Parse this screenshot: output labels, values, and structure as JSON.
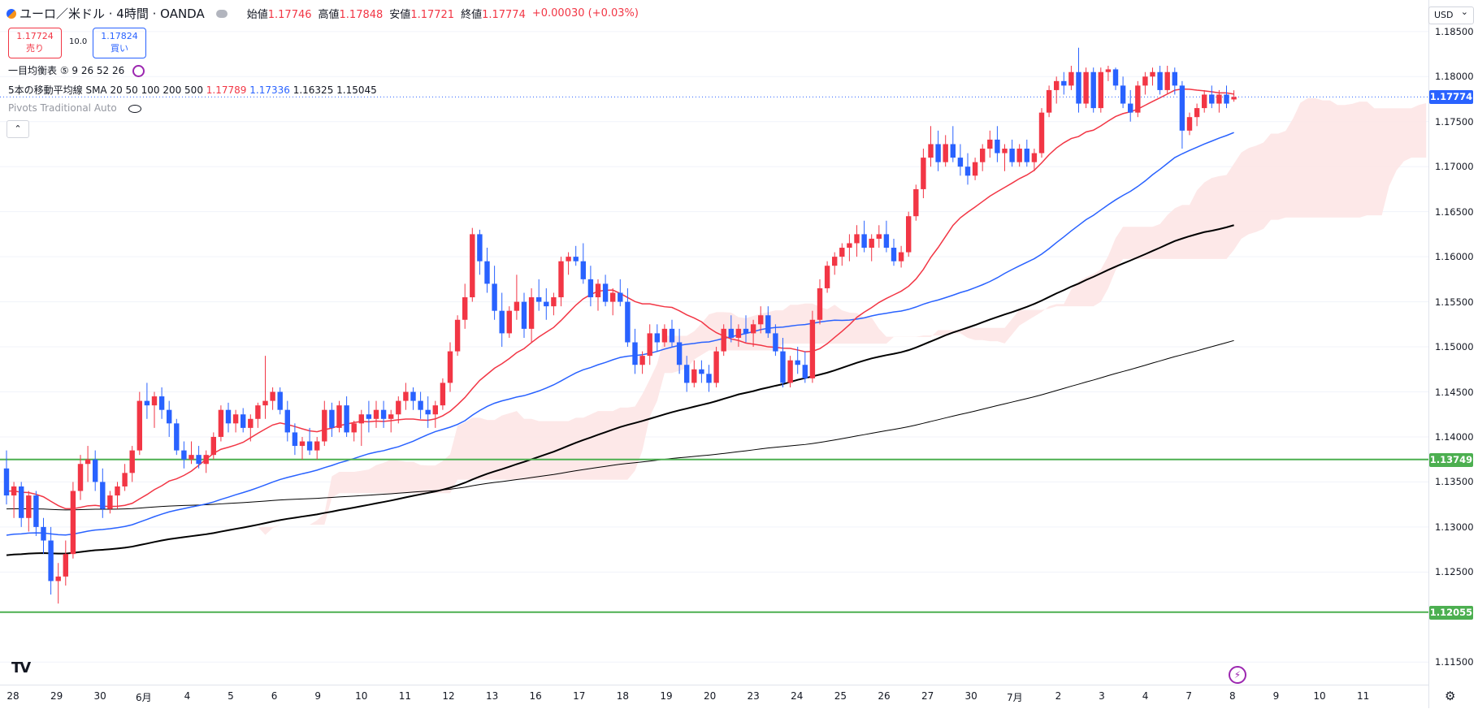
{
  "header": {
    "symbol": "ユーロ／米ドル · 4時間 · OANDA",
    "open_label": "始値",
    "open": "1.17746",
    "high_label": "高値",
    "high": "1.17848",
    "low_label": "安値",
    "low": "1.17721",
    "close_label": "終値",
    "close": "1.17774",
    "change": "+0.00030 (+0.03%)"
  },
  "trade": {
    "sell_price": "1.17724",
    "sell_label": "売り",
    "spread": "10.0",
    "buy_price": "1.17824",
    "buy_label": "買い"
  },
  "indicators": {
    "ichimoku_label": "一目均衡表 ⑤ 9 26 52 26",
    "sma_label": "5本の移動平均線 SMA 20 50 100 200 500",
    "sma20": "1.17789",
    "sma50": "1.17336",
    "sma100": "1.16325",
    "sma200": "1.15045",
    "pivots_label": "Pivots Traditional Auto",
    "collapse_label": "⌃"
  },
  "currency": "USD",
  "colors": {
    "up": "#f23645",
    "down": "#2962ff",
    "sma20": "#f23645",
    "sma50": "#2962ff",
    "sma100": "#000000",
    "sma200": "#000000",
    "cloud": "#fde4e4",
    "level": "#4caf50",
    "last_price": "#2962ff"
  },
  "chart_data": {
    "type": "candlestick",
    "symbol": "EURUSD",
    "ylim": [
      1.1125,
      1.1885
    ],
    "y_ticks": [
      "1.18500",
      "1.18000",
      "1.17500",
      "1.17000",
      "1.16500",
      "1.16000",
      "1.15500",
      "1.15000",
      "1.14500",
      "1.14000",
      "1.13500",
      "1.13000",
      "1.12500",
      "1.11500"
    ],
    "x_labels": [
      "28",
      "29",
      "30",
      "6月",
      "4",
      "5",
      "6",
      "9",
      "10",
      "11",
      "12",
      "13",
      "16",
      "17",
      "18",
      "19",
      "20",
      "23",
      "24",
      "25",
      "26",
      "27",
      "30",
      "7月",
      "2",
      "3",
      "4",
      "7",
      "8",
      "9",
      "10",
      "11"
    ],
    "last_price": "1.17774",
    "levels": [
      "1.13749",
      "1.12055"
    ],
    "candles": [
      [
        1.1365,
        1.1385,
        1.1325,
        1.1335
      ],
      [
        1.1335,
        1.135,
        1.131,
        1.1345
      ],
      [
        1.1345,
        1.135,
        1.13,
        1.131
      ],
      [
        1.131,
        1.134,
        1.1295,
        1.1335
      ],
      [
        1.1335,
        1.134,
        1.129,
        1.13
      ],
      [
        1.13,
        1.131,
        1.127,
        1.1285
      ],
      [
        1.1285,
        1.13,
        1.1225,
        1.124
      ],
      [
        1.124,
        1.126,
        1.1215,
        1.1245
      ],
      [
        1.1245,
        1.1285,
        1.1235,
        1.127
      ],
      [
        1.127,
        1.135,
        1.1265,
        1.134
      ],
      [
        1.134,
        1.138,
        1.133,
        1.137
      ],
      [
        1.137,
        1.139,
        1.135,
        1.1375
      ],
      [
        1.1375,
        1.1385,
        1.134,
        1.135
      ],
      [
        1.135,
        1.1365,
        1.131,
        1.132
      ],
      [
        1.132,
        1.134,
        1.1315,
        1.1335
      ],
      [
        1.1335,
        1.135,
        1.132,
        1.1345
      ],
      [
        1.1345,
        1.137,
        1.134,
        1.136
      ],
      [
        1.136,
        1.139,
        1.135,
        1.1385
      ],
      [
        1.1385,
        1.145,
        1.138,
        1.144
      ],
      [
        1.144,
        1.146,
        1.142,
        1.1435
      ],
      [
        1.1435,
        1.145,
        1.141,
        1.1445
      ],
      [
        1.1445,
        1.1455,
        1.142,
        1.143
      ],
      [
        1.143,
        1.144,
        1.14,
        1.1415
      ],
      [
        1.1415,
        1.142,
        1.138,
        1.1385
      ],
      [
        1.1385,
        1.1395,
        1.1365,
        1.1375
      ],
      [
        1.1375,
        1.1395,
        1.137,
        1.138
      ],
      [
        1.138,
        1.139,
        1.1365,
        1.137
      ],
      [
        1.137,
        1.1385,
        1.136,
        1.138
      ],
      [
        1.138,
        1.1405,
        1.1375,
        1.14
      ],
      [
        1.14,
        1.1435,
        1.1395,
        1.143
      ],
      [
        1.143,
        1.1438,
        1.1405,
        1.1415
      ],
      [
        1.1415,
        1.143,
        1.1405,
        1.1425
      ],
      [
        1.1425,
        1.1432,
        1.1405,
        1.141
      ],
      [
        1.141,
        1.1425,
        1.1395,
        1.142
      ],
      [
        1.142,
        1.1438,
        1.141,
        1.1435
      ],
      [
        1.1435,
        1.149,
        1.142,
        1.144
      ],
      [
        1.144,
        1.1455,
        1.143,
        1.145
      ],
      [
        1.145,
        1.1455,
        1.1425,
        1.143
      ],
      [
        1.143,
        1.144,
        1.1395,
        1.1405
      ],
      [
        1.1405,
        1.1415,
        1.138,
        1.139
      ],
      [
        1.139,
        1.14,
        1.1375,
        1.1395
      ],
      [
        1.1395,
        1.141,
        1.138,
        1.1385
      ],
      [
        1.1385,
        1.14,
        1.1375,
        1.1395
      ],
      [
        1.1395,
        1.144,
        1.139,
        1.143
      ],
      [
        1.143,
        1.1438,
        1.14,
        1.141
      ],
      [
        1.141,
        1.144,
        1.1405,
        1.1435
      ],
      [
        1.1435,
        1.1445,
        1.14,
        1.1405
      ],
      [
        1.1405,
        1.1418,
        1.1395,
        1.1415
      ],
      [
        1.1415,
        1.143,
        1.139,
        1.1425
      ],
      [
        1.1425,
        1.144,
        1.1405,
        1.142
      ],
      [
        1.142,
        1.144,
        1.141,
        1.143
      ],
      [
        1.143,
        1.144,
        1.141,
        1.142
      ],
      [
        1.142,
        1.143,
        1.1405,
        1.1425
      ],
      [
        1.1425,
        1.1445,
        1.1415,
        1.144
      ],
      [
        1.144,
        1.146,
        1.143,
        1.145
      ],
      [
        1.145,
        1.1455,
        1.143,
        1.144
      ],
      [
        1.144,
        1.145,
        1.142,
        1.143
      ],
      [
        1.143,
        1.1445,
        1.141,
        1.1425
      ],
      [
        1.1425,
        1.144,
        1.141,
        1.1435
      ],
      [
        1.1435,
        1.1465,
        1.143,
        1.146
      ],
      [
        1.146,
        1.1505,
        1.145,
        1.1495
      ],
      [
        1.1495,
        1.1535,
        1.149,
        1.153
      ],
      [
        1.153,
        1.157,
        1.152,
        1.1555
      ],
      [
        1.1555,
        1.1632,
        1.155,
        1.1625
      ],
      [
        1.1625,
        1.163,
        1.158,
        1.1595
      ],
      [
        1.1595,
        1.161,
        1.156,
        1.157
      ],
      [
        1.157,
        1.159,
        1.153,
        1.154
      ],
      [
        1.154,
        1.156,
        1.15,
        1.1515
      ],
      [
        1.1515,
        1.1545,
        1.151,
        1.154
      ],
      [
        1.154,
        1.158,
        1.153,
        1.155
      ],
      [
        1.155,
        1.156,
        1.151,
        1.152
      ],
      [
        1.152,
        1.1565,
        1.1505,
        1.1555
      ],
      [
        1.1555,
        1.1575,
        1.154,
        1.155
      ],
      [
        1.155,
        1.1565,
        1.153,
        1.1545
      ],
      [
        1.1545,
        1.156,
        1.1535,
        1.1555
      ],
      [
        1.1555,
        1.16,
        1.1545,
        1.1595
      ],
      [
        1.1595,
        1.1605,
        1.158,
        1.16
      ],
      [
        1.16,
        1.1612,
        1.159,
        1.1595
      ],
      [
        1.1595,
        1.1615,
        1.157,
        1.1575
      ],
      [
        1.1575,
        1.159,
        1.1545,
        1.1555
      ],
      [
        1.1555,
        1.1575,
        1.154,
        1.157
      ],
      [
        1.157,
        1.158,
        1.1545,
        1.155
      ],
      [
        1.155,
        1.1565,
        1.1535,
        1.156
      ],
      [
        1.156,
        1.1575,
        1.1545,
        1.155
      ],
      [
        1.155,
        1.1565,
        1.15,
        1.1505
      ],
      [
        1.1505,
        1.152,
        1.147,
        1.148
      ],
      [
        1.148,
        1.1495,
        1.147,
        1.149
      ],
      [
        1.149,
        1.1525,
        1.148,
        1.1515
      ],
      [
        1.1515,
        1.1525,
        1.1495,
        1.1505
      ],
      [
        1.1505,
        1.1525,
        1.15,
        1.152
      ],
      [
        1.152,
        1.153,
        1.15,
        1.1505
      ],
      [
        1.1505,
        1.152,
        1.147,
        1.148
      ],
      [
        1.148,
        1.149,
        1.145,
        1.146
      ],
      [
        1.146,
        1.1485,
        1.1455,
        1.1475
      ],
      [
        1.1475,
        1.1485,
        1.146,
        1.147
      ],
      [
        1.147,
        1.148,
        1.145,
        1.146
      ],
      [
        1.146,
        1.15,
        1.1455,
        1.1495
      ],
      [
        1.1495,
        1.1525,
        1.149,
        1.152
      ],
      [
        1.152,
        1.1535,
        1.1505,
        1.151
      ],
      [
        1.151,
        1.1525,
        1.15,
        1.152
      ],
      [
        1.152,
        1.1535,
        1.1505,
        1.1515
      ],
      [
        1.1515,
        1.153,
        1.15,
        1.1525
      ],
      [
        1.1525,
        1.1545,
        1.1515,
        1.1535
      ],
      [
        1.1535,
        1.1545,
        1.151,
        1.1515
      ],
      [
        1.1515,
        1.1525,
        1.149,
        1.1495
      ],
      [
        1.1495,
        1.151,
        1.1455,
        1.146
      ],
      [
        1.146,
        1.149,
        1.1455,
        1.1485
      ],
      [
        1.1485,
        1.15,
        1.147,
        1.148
      ],
      [
        1.148,
        1.1495,
        1.146,
        1.1465
      ],
      [
        1.1465,
        1.154,
        1.146,
        1.153
      ],
      [
        1.153,
        1.1575,
        1.1525,
        1.1565
      ],
      [
        1.1565,
        1.1595,
        1.156,
        1.159
      ],
      [
        1.159,
        1.1605,
        1.158,
        1.16
      ],
      [
        1.16,
        1.1615,
        1.159,
        1.161
      ],
      [
        1.161,
        1.1625,
        1.1595,
        1.1615
      ],
      [
        1.1615,
        1.1635,
        1.16,
        1.1625
      ],
      [
        1.1625,
        1.164,
        1.1605,
        1.161
      ],
      [
        1.161,
        1.1625,
        1.1595,
        1.162
      ],
      [
        1.162,
        1.1635,
        1.161,
        1.1625
      ],
      [
        1.1625,
        1.164,
        1.1605,
        1.161
      ],
      [
        1.161,
        1.162,
        1.159,
        1.1595
      ],
      [
        1.1595,
        1.1612,
        1.1588,
        1.1605
      ],
      [
        1.1605,
        1.165,
        1.16,
        1.1645
      ],
      [
        1.1645,
        1.168,
        1.164,
        1.1675
      ],
      [
        1.1675,
        1.172,
        1.1665,
        1.171
      ],
      [
        1.171,
        1.1745,
        1.17,
        1.1725
      ],
      [
        1.1725,
        1.174,
        1.1695,
        1.1705
      ],
      [
        1.1705,
        1.1735,
        1.17,
        1.1725
      ],
      [
        1.1725,
        1.1745,
        1.1705,
        1.171
      ],
      [
        1.171,
        1.1725,
        1.169,
        1.17
      ],
      [
        1.17,
        1.1715,
        1.168,
        1.169
      ],
      [
        1.169,
        1.171,
        1.1685,
        1.1705
      ],
      [
        1.1705,
        1.1725,
        1.1695,
        1.172
      ],
      [
        1.172,
        1.174,
        1.171,
        1.173
      ],
      [
        1.173,
        1.1745,
        1.1705,
        1.1715
      ],
      [
        1.1715,
        1.1725,
        1.1695,
        1.172
      ],
      [
        1.172,
        1.173,
        1.17,
        1.1705
      ],
      [
        1.1705,
        1.1725,
        1.17,
        1.172
      ],
      [
        1.172,
        1.173,
        1.17,
        1.1705
      ],
      [
        1.1705,
        1.172,
        1.1695,
        1.1715
      ],
      [
        1.1715,
        1.1765,
        1.171,
        1.176
      ],
      [
        1.176,
        1.179,
        1.1755,
        1.1785
      ],
      [
        1.1785,
        1.18,
        1.177,
        1.1795
      ],
      [
        1.1795,
        1.1805,
        1.178,
        1.179
      ],
      [
        1.179,
        1.1812,
        1.1785,
        1.1805
      ],
      [
        1.1805,
        1.1832,
        1.176,
        1.177
      ],
      [
        1.177,
        1.181,
        1.1765,
        1.1805
      ],
      [
        1.1805,
        1.181,
        1.176,
        1.1765
      ],
      [
        1.1765,
        1.181,
        1.176,
        1.1805
      ],
      [
        1.1805,
        1.1812,
        1.1795,
        1.1808
      ],
      [
        1.1808,
        1.181,
        1.1785,
        1.179
      ],
      [
        1.179,
        1.18,
        1.1765,
        1.177
      ],
      [
        1.177,
        1.1785,
        1.175,
        1.176
      ],
      [
        1.176,
        1.1795,
        1.1755,
        1.179
      ],
      [
        1.179,
        1.1805,
        1.178,
        1.18
      ],
      [
        1.18,
        1.181,
        1.179,
        1.1805
      ],
      [
        1.1805,
        1.1812,
        1.178,
        1.1785
      ],
      [
        1.1785,
        1.1812,
        1.178,
        1.1805
      ],
      [
        1.1805,
        1.181,
        1.178,
        1.179
      ],
      [
        1.179,
        1.1795,
        1.172,
        1.174
      ],
      [
        1.174,
        1.176,
        1.1735,
        1.1755
      ],
      [
        1.1755,
        1.177,
        1.1745,
        1.1765
      ],
      [
        1.1765,
        1.1785,
        1.176,
        1.178
      ],
      [
        1.178,
        1.179,
        1.1765,
        1.177
      ],
      [
        1.177,
        1.1785,
        1.176,
        1.178
      ],
      [
        1.178,
        1.179,
        1.1765,
        1.177
      ],
      [
        1.17746,
        1.17848,
        1.17721,
        1.17774
      ]
    ]
  }
}
